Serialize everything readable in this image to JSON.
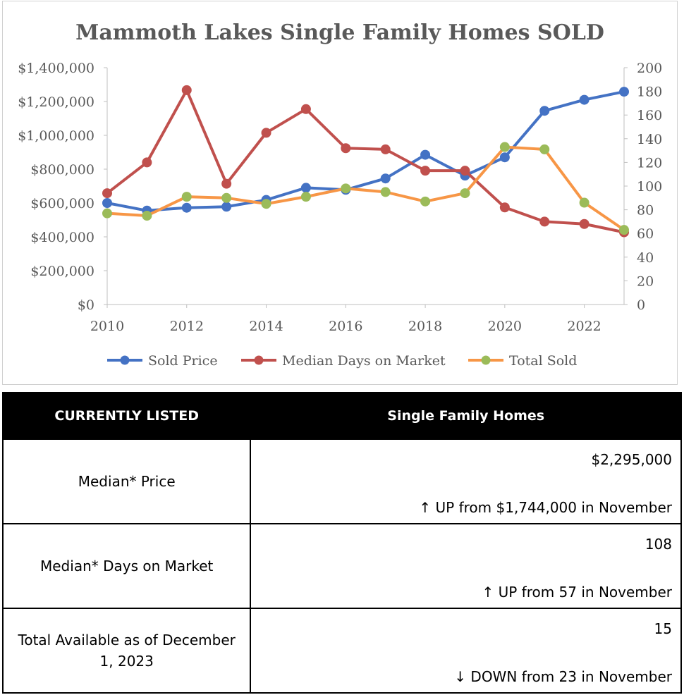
{
  "chart_data": {
    "type": "line",
    "title": "Mammoth Lakes Single Family Homes SOLD",
    "x": [
      2010,
      2011,
      2012,
      2013,
      2014,
      2015,
      2016,
      2017,
      2018,
      2019,
      2020,
      2021,
      2022,
      2023
    ],
    "x_ticks": [
      "2010",
      "2012",
      "2014",
      "2016",
      "2018",
      "2020",
      "2022"
    ],
    "xlim": [
      2010,
      2023
    ],
    "y_left_ticks": [
      "$0",
      "$200,000",
      "$400,000",
      "$600,000",
      "$800,000",
      "$1,000,000",
      "$1,200,000",
      "$1,400,000"
    ],
    "ylim_left": [
      0,
      1400000
    ],
    "y_right_ticks": [
      "0",
      "20",
      "40",
      "60",
      "80",
      "100",
      "120",
      "140",
      "160",
      "180",
      "200"
    ],
    "ylim_right": [
      0,
      200
    ],
    "grid": false,
    "legend_position": "bottom",
    "series": [
      {
        "name": "Sold Price",
        "axis": "left",
        "color": "#4472c4",
        "values": [
          600000,
          555000,
          572000,
          578000,
          618000,
          690000,
          678000,
          745000,
          885000,
          762000,
          870000,
          1145000,
          1210000,
          1258000
        ]
      },
      {
        "name": "Median Days on Market",
        "axis": "right",
        "color": "#c0504d",
        "values": [
          94,
          120,
          181,
          102,
          145,
          165,
          132,
          131,
          113,
          113,
          82,
          70,
          68,
          61
        ]
      },
      {
        "name": "Total Sold",
        "axis": "right",
        "color": "#f79646",
        "marker_color": "#9bbb59",
        "values": [
          77,
          75,
          91,
          90,
          85,
          91,
          98,
          95,
          87,
          94,
          133,
          131,
          86,
          63
        ]
      }
    ]
  },
  "table": {
    "header": {
      "col1": "CURRENTLY LISTED",
      "col2": "Single Family Homes"
    },
    "rows": [
      {
        "label": "Median* Price",
        "value": "$2,295,000",
        "change": "↑ UP from $1,744,000 in November"
      },
      {
        "label": "Median* Days on Market",
        "value": "108",
        "change": "↑ UP from 57 in November"
      },
      {
        "label": "Total Available as of December 1, 2023",
        "value": "15",
        "change": "↓ DOWN from 23 in November"
      }
    ]
  }
}
